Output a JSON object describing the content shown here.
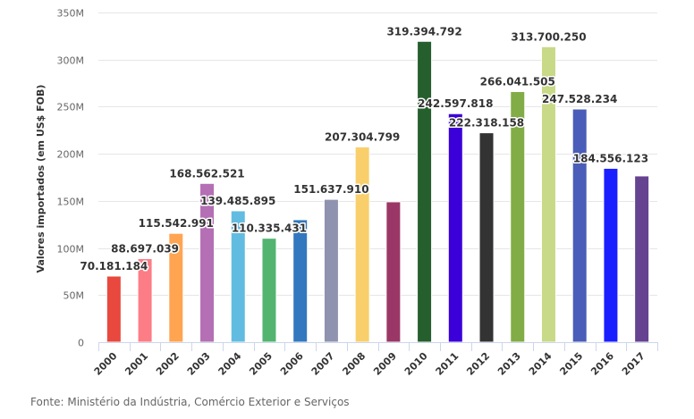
{
  "chart_data": {
    "type": "bar",
    "title": "",
    "xlabel": "",
    "ylabel": "Valores importados (em US$ FOB)",
    "ylim": [
      0,
      350000000
    ],
    "yticks": [
      0,
      50000000,
      100000000,
      150000000,
      200000000,
      250000000,
      300000000,
      350000000
    ],
    "ytick_labels": [
      "0",
      "50M",
      "100M",
      "150M",
      "200M",
      "250M",
      "300M",
      "350M"
    ],
    "grid": true,
    "legend": "none",
    "categories": [
      "2000",
      "2001",
      "2002",
      "2003",
      "2004",
      "2005",
      "2006",
      "2007",
      "2008",
      "2009",
      "2010",
      "2011",
      "2012",
      "2013",
      "2014",
      "2015",
      "2016",
      "2017"
    ],
    "values": [
      70181184,
      88697039,
      115542991,
      168562521,
      139485895,
      110335431,
      130000000,
      151637910,
      207304799,
      149000000,
      319394792,
      242597818,
      222318158,
      266041505,
      313700250,
      247528234,
      184556123,
      176500000
    ],
    "data_labels": [
      "70.181.184",
      "88.697.039",
      "115.542.991",
      "168.562.521",
      "139.485.895",
      "110.335.431",
      "",
      "151.637.910",
      "207.304.799",
      "",
      "319.394.792",
      "242.597.818",
      "222.318.158",
      "266.041.505",
      "313.700.250",
      "247.528.234",
      "184.556.123",
      ""
    ],
    "colors": [
      "#E9483F",
      "#FC7D85",
      "#FFA552",
      "#B46FB5",
      "#62BCE1",
      "#53B470",
      "#3278BF",
      "#8F93AF",
      "#F8CF6B",
      "#9B3766",
      "#245F2D",
      "#3B00D9",
      "#333333",
      "#82AC46",
      "#C8D987",
      "#4A5DB8",
      "#1A1FFF",
      "#654390"
    ]
  },
  "source": "Fonte: Ministério da Indústria, Comércio Exterior e Serviços"
}
